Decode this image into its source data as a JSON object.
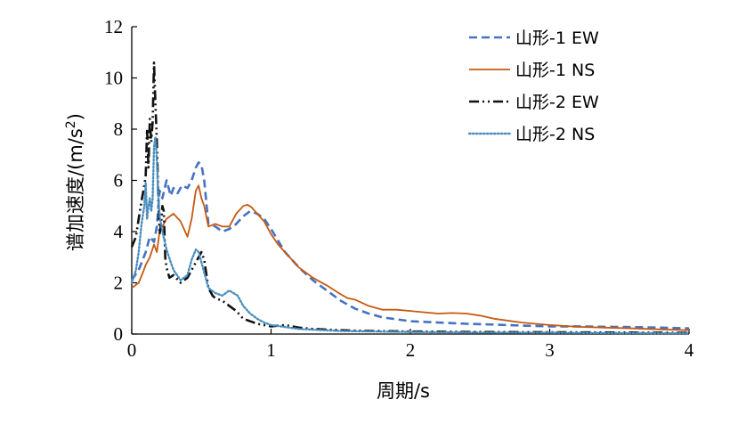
{
  "chart_data": {
    "type": "line",
    "xlabel": "周期/s",
    "ylabel_main": "谱加速度/(m/s",
    "ylabel_sup": "2",
    "ylabel_close": ")",
    "xlim": [
      0,
      4
    ],
    "ylim": [
      0,
      12
    ],
    "xticks": [
      0,
      1,
      2,
      3,
      4
    ],
    "yticks": [
      0,
      2,
      4,
      6,
      8,
      10,
      12
    ],
    "grid": false,
    "legend_position": "top-right",
    "series": [
      {
        "name": "山形-1 EW",
        "color": "#4472C4",
        "dash": "dashed",
        "x": [
          0,
          0.05,
          0.1,
          0.13,
          0.16,
          0.18,
          0.2,
          0.22,
          0.25,
          0.28,
          0.3,
          0.33,
          0.36,
          0.4,
          0.43,
          0.46,
          0.48,
          0.5,
          0.52,
          0.55,
          0.6,
          0.65,
          0.7,
          0.75,
          0.8,
          0.85,
          0.9,
          0.95,
          1.0,
          1.1,
          1.2,
          1.3,
          1.4,
          1.5,
          1.6,
          1.7,
          1.8,
          2.0,
          2.2,
          2.4,
          2.6,
          2.8,
          3.0,
          3.2,
          3.4,
          3.6,
          3.8,
          4.0
        ],
        "y": [
          2.1,
          2.5,
          3.2,
          3.8,
          3.6,
          4.2,
          5.6,
          5.3,
          6.0,
          5.4,
          5.7,
          5.5,
          5.8,
          5.7,
          6.0,
          6.5,
          6.7,
          6.6,
          6.0,
          4.3,
          4.2,
          4.0,
          4.1,
          4.3,
          4.6,
          4.8,
          4.7,
          4.5,
          4.1,
          3.2,
          2.6,
          2.1,
          1.7,
          1.3,
          1.0,
          0.8,
          0.65,
          0.5,
          0.45,
          0.4,
          0.37,
          0.33,
          0.3,
          0.3,
          0.28,
          0.27,
          0.25,
          0.22
        ]
      },
      {
        "name": "山形-1 NS",
        "color": "#C55A11",
        "dash": "solid",
        "x": [
          0,
          0.05,
          0.08,
          0.1,
          0.13,
          0.16,
          0.18,
          0.2,
          0.22,
          0.25,
          0.3,
          0.35,
          0.4,
          0.43,
          0.46,
          0.48,
          0.5,
          0.52,
          0.55,
          0.6,
          0.65,
          0.7,
          0.75,
          0.8,
          0.83,
          0.86,
          0.9,
          0.95,
          1.0,
          1.05,
          1.1,
          1.2,
          1.3,
          1.4,
          1.5,
          1.55,
          1.6,
          1.7,
          1.8,
          1.9,
          2.0,
          2.1,
          2.2,
          2.3,
          2.4,
          2.5,
          2.6,
          2.8,
          3.0,
          3.2,
          3.4,
          3.6,
          3.8,
          4.0
        ],
        "y": [
          1.8,
          2.0,
          2.4,
          2.7,
          3.0,
          3.5,
          3.2,
          4.0,
          4.2,
          4.5,
          4.7,
          4.4,
          3.8,
          4.5,
          5.6,
          5.8,
          5.3,
          5.0,
          4.2,
          4.3,
          4.2,
          4.2,
          4.7,
          5.0,
          5.05,
          4.95,
          4.7,
          4.4,
          3.9,
          3.5,
          3.2,
          2.6,
          2.2,
          1.9,
          1.55,
          1.4,
          1.35,
          1.1,
          0.95,
          0.95,
          0.9,
          0.85,
          0.8,
          0.82,
          0.8,
          0.72,
          0.6,
          0.45,
          0.35,
          0.28,
          0.25,
          0.22,
          0.18,
          0.15
        ]
      },
      {
        "name": "山形-2 EW",
        "color": "#111111",
        "dash": "dashdotdot",
        "x": [
          0,
          0.03,
          0.05,
          0.07,
          0.09,
          0.1,
          0.11,
          0.12,
          0.13,
          0.14,
          0.15,
          0.16,
          0.17,
          0.18,
          0.19,
          0.2,
          0.21,
          0.22,
          0.23,
          0.24,
          0.25,
          0.27,
          0.3,
          0.35,
          0.4,
          0.43,
          0.46,
          0.5,
          0.52,
          0.55,
          0.58,
          0.6,
          0.65,
          0.7,
          0.75,
          0.8,
          0.9,
          1.0,
          1.1,
          1.2,
          1.3,
          1.5,
          1.7,
          2.0,
          2.5,
          3.0,
          3.5,
          4.0
        ],
        "y": [
          3.4,
          3.8,
          4.5,
          5.2,
          5.8,
          6.2,
          8.0,
          6.5,
          8.4,
          7.5,
          8.3,
          10.6,
          9.0,
          7.5,
          5.5,
          3.9,
          4.3,
          5.0,
          4.8,
          3.0,
          2.6,
          2.2,
          2.3,
          2.0,
          2.2,
          2.5,
          2.8,
          3.2,
          2.9,
          1.8,
          1.5,
          1.4,
          1.3,
          1.1,
          0.9,
          0.6,
          0.4,
          0.3,
          0.35,
          0.25,
          0.2,
          0.15,
          0.12,
          0.1,
          0.08,
          0.07,
          0.06,
          0.05
        ]
      },
      {
        "name": "山形-2 NS",
        "color": "#4A8FBF",
        "dash": "dotted",
        "x": [
          0,
          0.03,
          0.05,
          0.07,
          0.09,
          0.1,
          0.11,
          0.12,
          0.13,
          0.14,
          0.15,
          0.16,
          0.17,
          0.18,
          0.19,
          0.2,
          0.22,
          0.25,
          0.28,
          0.3,
          0.35,
          0.4,
          0.43,
          0.46,
          0.48,
          0.5,
          0.55,
          0.6,
          0.65,
          0.7,
          0.73,
          0.76,
          0.8,
          0.85,
          0.9,
          0.95,
          1.0,
          1.2,
          1.5,
          2.0,
          2.5,
          3.0,
          3.5,
          4.0
        ],
        "y": [
          2.0,
          2.5,
          3.2,
          4.3,
          5.0,
          5.9,
          4.5,
          5.0,
          5.3,
          4.8,
          5.3,
          7.3,
          7.7,
          6.8,
          5.5,
          4.6,
          4.0,
          3.3,
          2.8,
          2.5,
          2.1,
          2.3,
          2.9,
          3.3,
          3.2,
          2.8,
          1.8,
          1.6,
          1.5,
          1.7,
          1.6,
          1.5,
          1.1,
          0.8,
          0.6,
          0.45,
          0.35,
          0.2,
          0.12,
          0.08,
          0.06,
          0.05,
          0.04,
          0.03
        ]
      }
    ]
  }
}
